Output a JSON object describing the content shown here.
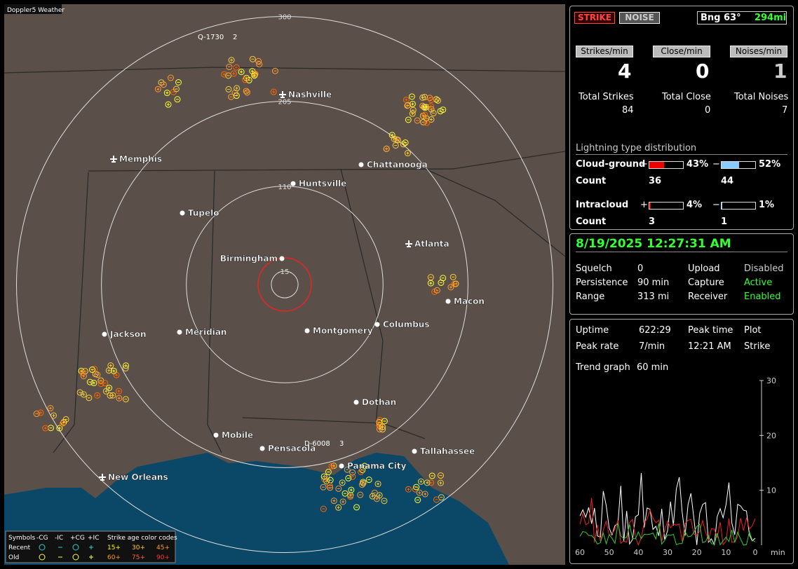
{
  "map": {
    "title": "Doppler5 Weather",
    "ring_labels": [
      300,
      205,
      110,
      15
    ],
    "cities": [
      {
        "name": "Nashville"
      },
      {
        "name": "Memphis"
      },
      {
        "name": "Chattanooga"
      },
      {
        "name": "Huntsville"
      },
      {
        "name": "Tupelo"
      },
      {
        "name": "Birmingham"
      },
      {
        "name": "Atlanta"
      },
      {
        "name": "Macon"
      },
      {
        "name": "Columbus"
      },
      {
        "name": "Montgomery"
      },
      {
        "name": "Meridian"
      },
      {
        "name": "Jackson"
      },
      {
        "name": "Dothan"
      },
      {
        "name": "Mobile"
      },
      {
        "name": "Pensacola"
      },
      {
        "name": "Tallahassee"
      },
      {
        "name": "Panama City"
      },
      {
        "name": "New Orleans"
      }
    ],
    "markers": [
      {
        "label": "Q-1730",
        "count": 2
      },
      {
        "label": "D-6008",
        "count": 3
      }
    ],
    "legend": {
      "symbols_label": "Symbols",
      "types": [
        "-CG",
        "-IC",
        "+CG",
        "+IC"
      ],
      "age_title": "Strike age color codes",
      "rows": [
        {
          "label": "Recent",
          "ages": [
            "15+",
            "30+",
            "45+"
          ]
        },
        {
          "label": "Old",
          "ages": [
            "60+",
            "75+",
            "90+"
          ]
        }
      ]
    }
  },
  "panel": {
    "buttons": [
      "STRIKE",
      "NOISE"
    ],
    "bearing": "Bng 63°",
    "distance": "294mi",
    "rates": [
      {
        "label": "Strikes/min",
        "value": 4
      },
      {
        "label": "Close/min",
        "value": 0
      },
      {
        "label": "Noises/min",
        "value": 1
      }
    ],
    "totals": [
      {
        "label": "Total Strikes",
        "value": 84
      },
      {
        "label": "Total Close",
        "value": 0
      },
      {
        "label": "Total Noises",
        "value": 7
      }
    ],
    "distribution": {
      "title": "Lightning type distribution",
      "rows": [
        {
          "label": "Cloud-ground",
          "pos_sign": "+",
          "pos": {
            "value": 43,
            "label": "43%"
          },
          "neg_sign": "−",
          "neg": {
            "value": 52,
            "label": "52%"
          },
          "count_label": "Count",
          "pos_count": 36,
          "neg_count": 44
        },
        {
          "label": "Intracloud",
          "pos_sign": "+",
          "pos": {
            "value": 4,
            "label": "4%"
          },
          "neg_sign": "−",
          "neg": {
            "value": 1,
            "label": "1%"
          },
          "count_label": "Count",
          "pos_count": 3,
          "neg_count": 1
        }
      ]
    }
  },
  "status": {
    "datetime": "8/19/2025 12:27:31 AM",
    "items": [
      {
        "label": "Squelch",
        "value": 0
      },
      {
        "label": "Upload",
        "value": "Disabled"
      },
      {
        "label": "Persistence",
        "value": "90 min"
      },
      {
        "label": "Capture",
        "value": "Active"
      },
      {
        "label": "Range",
        "value": "313 mi"
      },
      {
        "label": "Receiver",
        "value": "Enabled"
      }
    ]
  },
  "stats": {
    "uptime": {
      "label": "Uptime",
      "value": "622:29"
    },
    "peak_time": {
      "label": "Peak time",
      "value": "12:21 AM"
    },
    "plot": {
      "label": "Plot",
      "value": "Strike"
    },
    "peak_rate": {
      "label": "Peak rate",
      "value": "7/min"
    },
    "trend": {
      "label": "Trend graph",
      "value": "60 min"
    }
  },
  "graph": {
    "ylim": [
      0,
      30
    ],
    "yticks": [
      10,
      20,
      30
    ],
    "xlim": [
      60,
      0
    ],
    "xticks": [
      60,
      50,
      40,
      30,
      20,
      10,
      0
    ],
    "x_unit": "min"
  }
}
